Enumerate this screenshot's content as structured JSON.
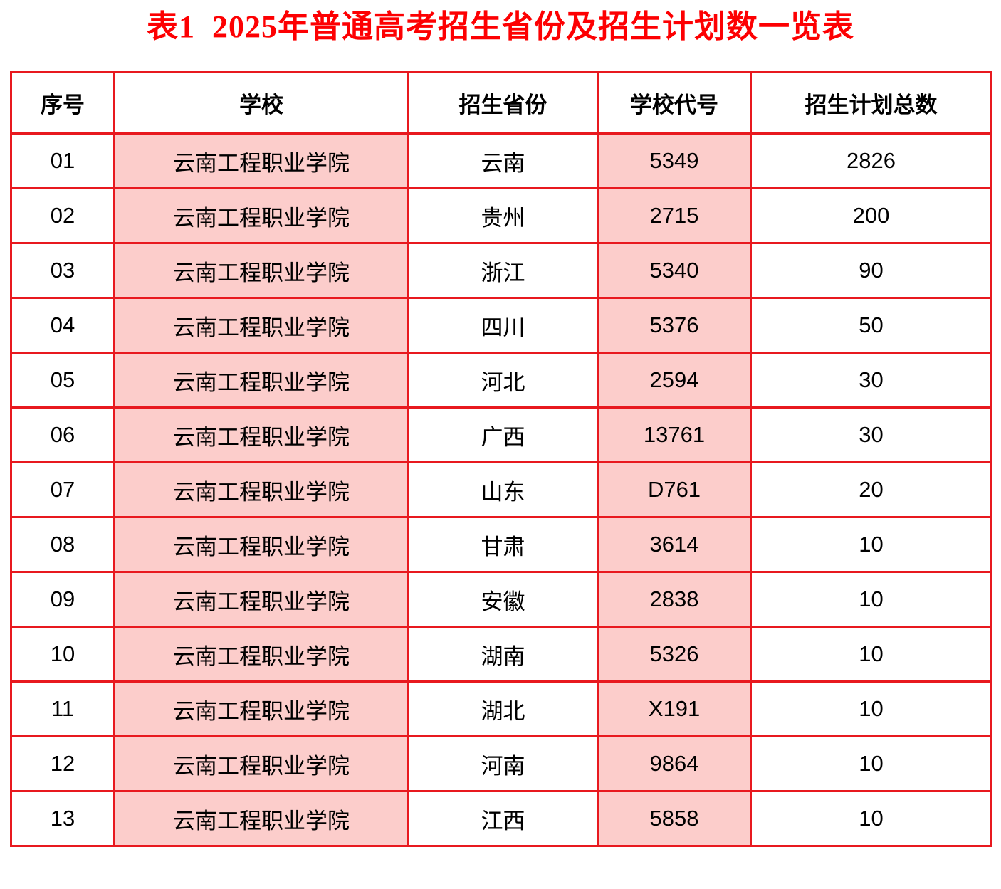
{
  "title": {
    "text": "表1  2025年普通高考招生省份及招生计划数一览表"
  },
  "colors": {
    "border_red": "#e8191f",
    "title_red": "#fd0002",
    "highlight_pink": "#fccdcb",
    "text_black": "#000000"
  },
  "table": {
    "columns": [
      "序号",
      "学校",
      "招生省份",
      "学校代号",
      "招生计划总数"
    ],
    "highlighted_columns": [
      "学校",
      "学校代号"
    ],
    "rows": [
      [
        "01",
        "云南工程职业学院",
        "云南",
        "5349",
        "2826"
      ],
      [
        "02",
        "云南工程职业学院",
        "贵州",
        "2715",
        "200"
      ],
      [
        "03",
        "云南工程职业学院",
        "浙江",
        "5340",
        "90"
      ],
      [
        "04",
        "云南工程职业学院",
        "四川",
        "5376",
        "50"
      ],
      [
        "05",
        "云南工程职业学院",
        "河北",
        "2594",
        "30"
      ],
      [
        "06",
        "云南工程职业学院",
        "广西",
        "13761",
        "30"
      ],
      [
        "07",
        "云南工程职业学院",
        "山东",
        "D761",
        "20"
      ],
      [
        "08",
        "云南工程职业学院",
        "甘肃",
        "3614",
        "10"
      ],
      [
        "09",
        "云南工程职业学院",
        "安徽",
        "2838",
        "10"
      ],
      [
        "10",
        "云南工程职业学院",
        "湖南",
        "5326",
        "10"
      ],
      [
        "11",
        "云南工程职业学院",
        "湖北",
        "X191",
        "10"
      ],
      [
        "12",
        "云南工程职业学院",
        "河南",
        "9864",
        "10"
      ],
      [
        "13",
        "云南工程职业学院",
        "江西",
        "5858",
        "10"
      ]
    ]
  }
}
